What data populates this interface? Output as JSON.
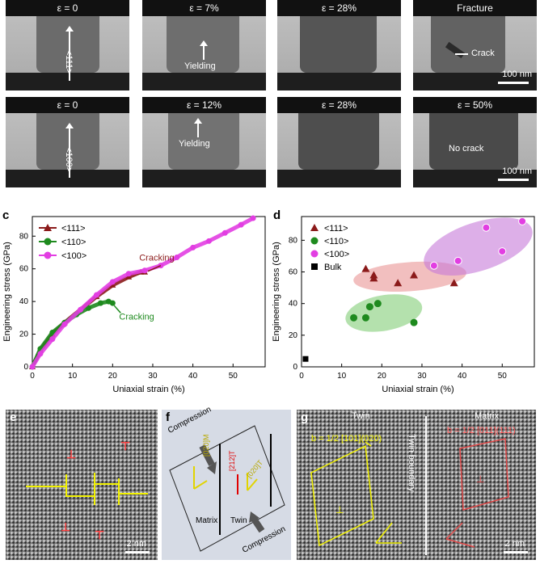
{
  "panel_labels": {
    "a": "a",
    "b": "b",
    "c": "c",
    "d": "d",
    "e": "e",
    "f": "f",
    "g": "g"
  },
  "row_a": {
    "tiles": [
      {
        "strain": "ε = 0",
        "annotation": "<111>"
      },
      {
        "strain": "ε = 7%",
        "annotation": "Yielding"
      },
      {
        "strain": "ε = 28%",
        "annotation": ""
      },
      {
        "strain": "Fracture",
        "annotation": "Crack"
      }
    ],
    "scalebar": "100 nm"
  },
  "row_b": {
    "tiles": [
      {
        "strain": "ε = 0",
        "annotation": "<100>"
      },
      {
        "strain": "ε = 12%",
        "annotation": "Yielding"
      },
      {
        "strain": "ε = 28%",
        "annotation": ""
      },
      {
        "strain": "ε = 50%",
        "annotation": "No crack"
      }
    ],
    "scalebar": "100 nm"
  },
  "chart_data": [
    {
      "type": "line",
      "xlabel": "Uniaxial strain (%)",
      "ylabel": "Engineering stress (GPa)",
      "xlim": [
        0,
        58
      ],
      "ylim": [
        0,
        92
      ],
      "xticks": [
        0,
        10,
        20,
        30,
        40,
        50
      ],
      "yticks": [
        0,
        20,
        40,
        60,
        80
      ],
      "legend_position": "top-left",
      "series": [
        {
          "name": "<111>",
          "color": "#8b1a1a",
          "x": [
            0,
            2,
            5,
            8,
            12,
            16,
            20,
            24,
            27,
            28
          ],
          "y": [
            0,
            10,
            20,
            27,
            35,
            43,
            50,
            55,
            58,
            58
          ]
        },
        {
          "name": "<110>",
          "color": "#1e8a1e",
          "x": [
            0,
            2,
            5,
            8,
            11,
            14,
            17,
            19,
            20
          ],
          "y": [
            0,
            11,
            21,
            27,
            32,
            36,
            39,
            40,
            39
          ]
        },
        {
          "name": "<100>",
          "color": "#e23ee2",
          "x": [
            0,
            2,
            5,
            8,
            12,
            16,
            20,
            24,
            28,
            32,
            36,
            40,
            44,
            48,
            52,
            55
          ],
          "y": [
            0,
            8,
            17,
            26,
            35,
            44,
            52,
            57,
            59,
            62,
            67,
            73,
            77,
            82,
            87,
            91
          ]
        }
      ],
      "annotations": [
        {
          "text": "Cracking",
          "x": 31,
          "y": 65,
          "color": "#8b1a1a"
        },
        {
          "text": "Cracking",
          "x": 26,
          "y": 29,
          "color": "#1e8a1e"
        }
      ]
    },
    {
      "type": "scatter",
      "xlabel": "Uniaxial strain (%)",
      "ylabel": "Engineering stress (GPa)",
      "xlim": [
        0,
        58
      ],
      "ylim": [
        0,
        95
      ],
      "xticks": [
        0,
        10,
        20,
        30,
        40,
        50
      ],
      "yticks": [
        0,
        20,
        40,
        60,
        80
      ],
      "legend_position": "top-left",
      "series": [
        {
          "name": "<111>",
          "color": "#8b1a1a",
          "marker": "triangle",
          "x": [
            16,
            18,
            18,
            24,
            28,
            38
          ],
          "y": [
            62,
            58,
            56,
            53,
            58,
            53
          ]
        },
        {
          "name": "<110>",
          "color": "#1e8a1e",
          "marker": "circle",
          "x": [
            13,
            16,
            17,
            19,
            28
          ],
          "y": [
            31,
            31,
            38,
            40,
            28
          ]
        },
        {
          "name": "<100>",
          "color": "#e23ee2",
          "marker": "sphere",
          "x": [
            33,
            39,
            46,
            50,
            55
          ],
          "y": [
            64,
            67,
            88,
            73,
            92
          ]
        },
        {
          "name": "Bulk",
          "color": "#000000",
          "marker": "square",
          "x": [
            1
          ],
          "y": [
            5
          ]
        }
      ]
    }
  ],
  "panel_e": {
    "scalebar": "2 nm"
  },
  "panel_f": {
    "compression_top": "Compression",
    "compression_bottom": "Compression",
    "matrix": "Matrix",
    "twin": "Twin",
    "dir_M": "[020]M",
    "dir_T1": "[212]T",
    "dir_T2": "[020]T"
  },
  "panel_g": {
    "twin": "Twin",
    "matrix": "Matrix",
    "boundary": "Twin boundary",
    "burgers_twin": "b = 1/2 [101](020)",
    "burgers_matrix": "b = 1/2 [011](111)",
    "scalebar": "2 nm"
  }
}
